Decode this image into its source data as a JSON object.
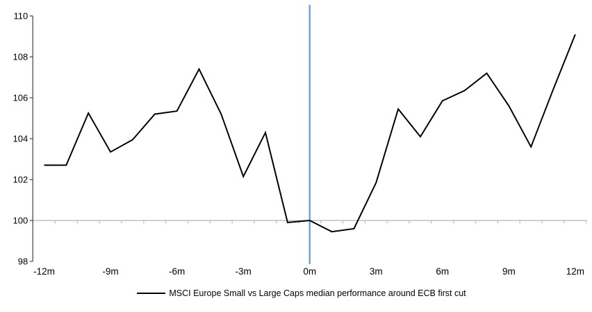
{
  "chart_data": {
    "type": "line",
    "title": "",
    "legend": "MSCI Europe Small vs Large Caps median performance around ECB first cut",
    "x": [
      -12,
      -11,
      -10,
      -9,
      -8,
      -7,
      -6,
      -5,
      -4,
      -3,
      -2,
      -1,
      0,
      1,
      2,
      3,
      4,
      5,
      6,
      7,
      8,
      9,
      10,
      11,
      12
    ],
    "series": [
      {
        "name": "MSCI Europe Small vs Large Caps median performance around ECB first cut",
        "values": [
          102.7,
          102.7,
          105.25,
          103.35,
          103.95,
          105.2,
          105.35,
          107.4,
          105.2,
          102.15,
          104.3,
          99.9,
          100.0,
          99.45,
          99.6,
          101.85,
          105.45,
          104.1,
          105.85,
          106.35,
          107.2,
          105.6,
          103.6,
          106.4,
          109.1
        ]
      }
    ],
    "x_tick_months": [
      -12,
      -9,
      -6,
      -3,
      0,
      3,
      6,
      9,
      12
    ],
    "x_tick_labels": [
      "-12m",
      "-9m",
      "-6m",
      "-3m",
      "0m",
      "3m",
      "6m",
      "9m",
      "12m"
    ],
    "y_ticks": [
      98,
      100,
      102,
      104,
      106,
      108,
      110
    ],
    "ylim": [
      98,
      110
    ],
    "baseline_value": 100,
    "event_line_x": 0,
    "legend_position": "bottom",
    "grid": "off",
    "colors": {
      "series_line": "#000000",
      "event_line": "#6EA0D2",
      "baseline_axis": "#BFBFBF",
      "y_axis": "#404040",
      "background": "#FFFFFF"
    }
  }
}
